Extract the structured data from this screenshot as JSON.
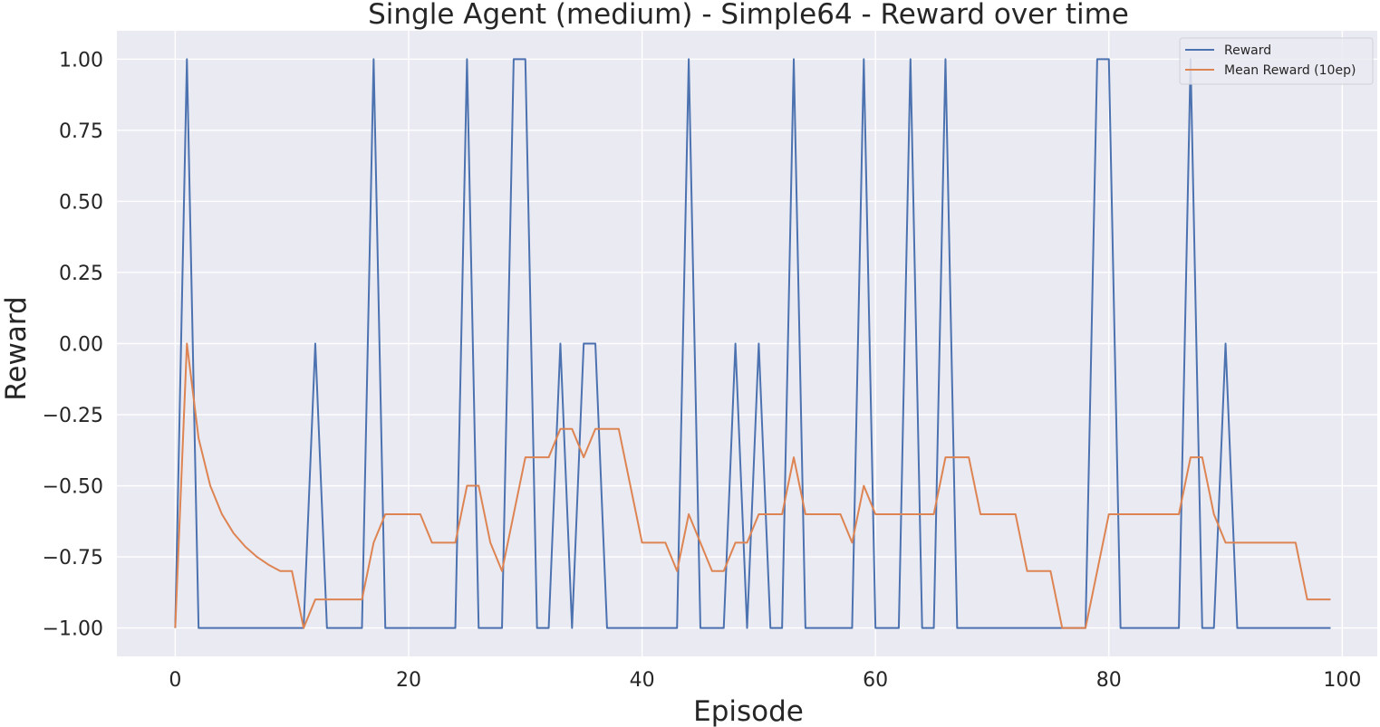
{
  "chart_data": {
    "type": "line",
    "title": "Single Agent (medium) - Simple64 - Reward over time",
    "xlabel": "Episode",
    "ylabel": "Reward",
    "xlim": [
      -5,
      103
    ],
    "ylim": [
      -1.1,
      1.1
    ],
    "xticks": [
      0,
      20,
      40,
      60,
      80,
      100
    ],
    "xtick_labels": [
      "0",
      "20",
      "40",
      "60",
      "80",
      "100"
    ],
    "yticks": [
      1.0,
      0.75,
      0.5,
      0.25,
      0.0,
      -0.25,
      -0.5,
      -0.75,
      -1.0
    ],
    "ytick_labels": [
      "1.00",
      "0.75",
      "0.50",
      "0.25",
      "0.00",
      "−0.25",
      "−0.50",
      "−0.75",
      "−1.00"
    ],
    "grid": true,
    "legend_position": "top-right",
    "series": [
      {
        "name": "Reward",
        "color": "#4c72b0",
        "values": [
          -1,
          1,
          -1,
          -1,
          -1,
          -1,
          -1,
          -1,
          -1,
          -1,
          -1,
          -1,
          0,
          -1,
          -1,
          -1,
          -1,
          1,
          -1,
          -1,
          -1,
          -1,
          -1,
          -1,
          -1,
          1,
          -1,
          -1,
          -1,
          1,
          1,
          -1,
          -1,
          0,
          -1,
          0,
          0,
          -1,
          -1,
          -1,
          -1,
          -1,
          -1,
          -1,
          1,
          -1,
          -1,
          -1,
          0,
          -1,
          0,
          -1,
          -1,
          1,
          -1,
          -1,
          -1,
          -1,
          -1,
          1,
          -1,
          -1,
          -1,
          1,
          -1,
          -1,
          1,
          -1,
          -1,
          -1,
          -1,
          -1,
          -1,
          -1,
          -1,
          -1,
          -1,
          -1,
          -1,
          1,
          1,
          -1,
          -1,
          -1,
          -1,
          -1,
          -1,
          1,
          -1,
          -1,
          0,
          -1,
          -1,
          -1,
          -1,
          -1,
          -1,
          -1,
          -1,
          -1
        ]
      },
      {
        "name": "Mean Reward (10ep)",
        "color": "#dd8452",
        "values": [
          -1,
          0,
          -0.333,
          -0.5,
          -0.6,
          -0.667,
          -0.714,
          -0.75,
          -0.778,
          -0.8,
          -0.8,
          -1.0,
          -0.9,
          -0.9,
          -0.9,
          -0.9,
          -0.9,
          -0.7,
          -0.6,
          -0.6,
          -0.6,
          -0.6,
          -0.7,
          -0.7,
          -0.7,
          -0.5,
          -0.5,
          -0.7,
          -0.8,
          -0.6,
          -0.4,
          -0.4,
          -0.4,
          -0.3,
          -0.3,
          -0.4,
          -0.3,
          -0.3,
          -0.3,
          -0.5,
          -0.7,
          -0.7,
          -0.7,
          -0.8,
          -0.6,
          -0.7,
          -0.8,
          -0.8,
          -0.7,
          -0.7,
          -0.6,
          -0.6,
          -0.6,
          -0.4,
          -0.6,
          -0.6,
          -0.6,
          -0.6,
          -0.7,
          -0.5,
          -0.6,
          -0.6,
          -0.6,
          -0.6,
          -0.6,
          -0.6,
          -0.4,
          -0.4,
          -0.4,
          -0.6,
          -0.6,
          -0.6,
          -0.6,
          -0.8,
          -0.8,
          -0.8,
          -1.0,
          -1.0,
          -1.0,
          -0.8,
          -0.6,
          -0.6,
          -0.6,
          -0.6,
          -0.6,
          -0.6,
          -0.6,
          -0.4,
          -0.4,
          -0.6,
          -0.7,
          -0.7,
          -0.7,
          -0.7,
          -0.7,
          -0.7,
          -0.7,
          -0.9,
          -0.9,
          -0.9
        ]
      }
    ]
  }
}
